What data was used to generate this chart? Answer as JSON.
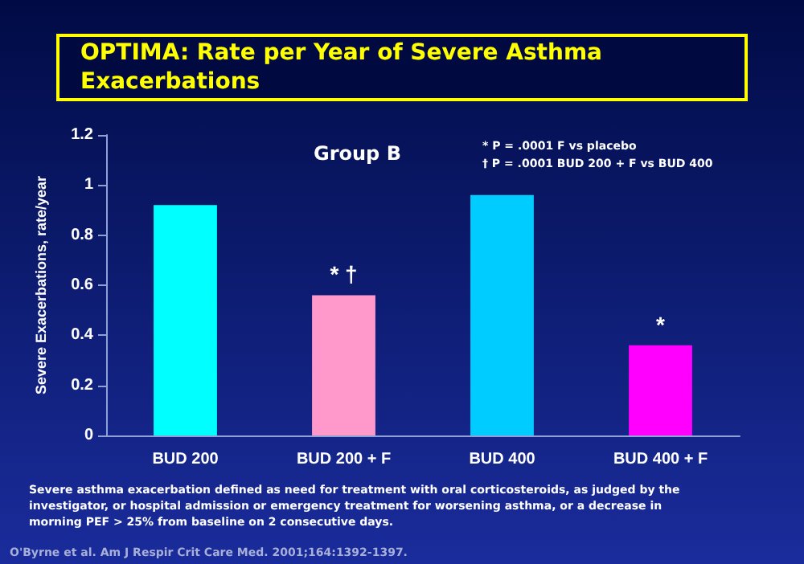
{
  "chart_data": {
    "type": "bar",
    "title": "OPTIMA: Rate per Year of Severe Asthma Exacerbations",
    "ylabel": "Severe Exacerbations, rate/year",
    "categories": [
      "BUD 200",
      "BUD 200 + F",
      "BUD 400",
      "BUD 400 + F"
    ],
    "values": [
      0.92,
      0.56,
      0.96,
      0.36
    ],
    "colors": [
      "#00ffff",
      "#ff99cc",
      "#00ccff",
      "#ff00ff"
    ],
    "ylim": [
      0,
      1.2
    ],
    "yticks": [
      0,
      0.2,
      0.4,
      0.6,
      0.8,
      1,
      1.2
    ],
    "grid": false,
    "annotations": [
      "Group B",
      "* P = .0001 F vs placebo",
      "† P = .0001 BUD 200 + F vs BUD 400",
      {
        "text": "* †",
        "x": "BUD 200 + F",
        "y": 0.56
      },
      {
        "text": "*",
        "x": "BUD 400 + F",
        "y": 0.36
      },
      "Severe asthma exacerbation defined as need for treatment with oral corticosteroids, as judged by the investigator, or hospital admission or emergency treatment for worsening asthma, or a decrease in morning PEF > 25% from baseline on 2 consecutive days.",
      "O'Byrne et al. Am J Respir Crit Care Med. 2001;164:1392-1397."
    ]
  }
}
